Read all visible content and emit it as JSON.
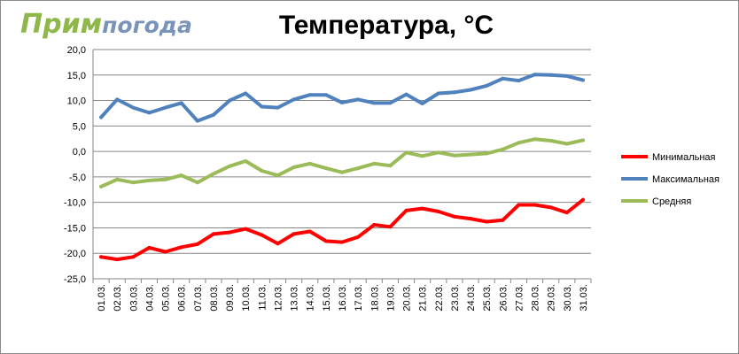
{
  "logo": {
    "part1": "Прим",
    "part2": "погода"
  },
  "chart_data": {
    "type": "line",
    "title": "Температура, °C",
    "xlabel": "",
    "ylabel": "",
    "ylim": [
      -25,
      20
    ],
    "ytick_step": 5,
    "ytick_labels": [
      "20,0",
      "15,0",
      "10,0",
      "5,0",
      "0,0",
      "-5,0",
      "-10,0",
      "-15,0",
      "-20,0",
      "-25,0"
    ],
    "grid": "horizontal",
    "legend_position": "right",
    "categories": [
      "01.03.",
      "02.03.",
      "03.03.",
      "04.03.",
      "05.03.",
      "06.03.",
      "07.03.",
      "08.03.",
      "09.03.",
      "10.03.",
      "11.03.",
      "12.03.",
      "13.03.",
      "14.03.",
      "15.03.",
      "16.03.",
      "17.03.",
      "18.03.",
      "19.03.",
      "20.03.",
      "21.03.",
      "22.03.",
      "23.03.",
      "24.03.",
      "25.03.",
      "26.03.",
      "27.03.",
      "28.03.",
      "29.03.",
      "30.03.",
      "31.03."
    ],
    "series": [
      {
        "name": "Минимальная",
        "color": "#ff0000",
        "values": [
          -20.7,
          -21.2,
          -20.7,
          -18.9,
          -19.7,
          -18.8,
          -18.2,
          -16.2,
          -15.9,
          -15.2,
          -16.4,
          -18.1,
          -16.2,
          -15.7,
          -17.6,
          -17.8,
          -16.8,
          -14.4,
          -14.8,
          -11.6,
          -11.2,
          -11.8,
          -12.8,
          -13.2,
          -13.8,
          -13.5,
          -10.5,
          -10.5,
          -11.0,
          -12.0,
          -9.5
        ]
      },
      {
        "name": "Максимальная",
        "color": "#4f81bd",
        "values": [
          6.7,
          10.2,
          8.6,
          7.6,
          8.6,
          9.5,
          6.0,
          7.2,
          10.0,
          11.4,
          8.8,
          8.6,
          10.2,
          11.1,
          11.1,
          9.6,
          10.2,
          9.5,
          9.5,
          11.2,
          9.4,
          11.4,
          11.6,
          12.1,
          12.9,
          14.3,
          13.9,
          15.1,
          15.0,
          14.8,
          14.0
        ]
      },
      {
        "name": "Средняя",
        "color": "#9bbb59",
        "values": [
          -6.9,
          -5.5,
          -6.1,
          -5.7,
          -5.5,
          -4.7,
          -6.1,
          -4.4,
          -2.9,
          -1.9,
          -3.8,
          -4.7,
          -3.1,
          -2.4,
          -3.3,
          -4.1,
          -3.3,
          -2.4,
          -2.8,
          -0.2,
          -0.9,
          -0.2,
          -0.8,
          -0.6,
          -0.4,
          0.4,
          1.7,
          2.4,
          2.1,
          1.5,
          2.2
        ]
      }
    ]
  }
}
